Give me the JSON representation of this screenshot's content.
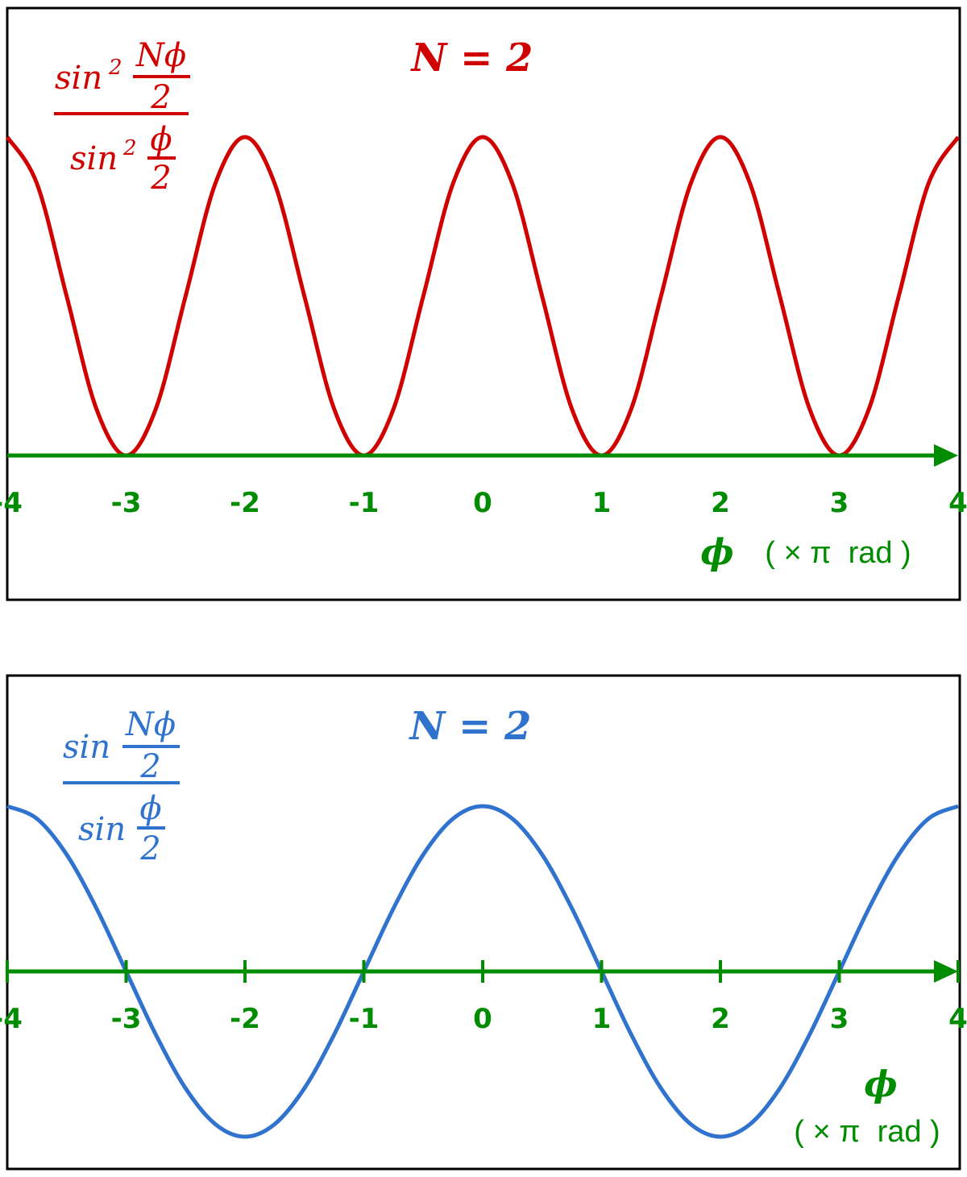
{
  "colors": {
    "top_curve": "#d00000",
    "bottom_curve": "#2f73cf",
    "axis": "#008c00",
    "frame": "#000000"
  },
  "chart_data": [
    {
      "type": "line",
      "title": "N = 2",
      "formula": {
        "num_fn": "sin",
        "num_pow": "2",
        "num_arg_top": "Nϕ",
        "num_arg_bot": "2",
        "den_fn": "sin",
        "den_pow": "2",
        "den_arg_top": "ϕ",
        "den_arg_bot": "2"
      },
      "xlabel": {
        "symbol": "ϕ",
        "unit": "( × π  rad )"
      },
      "xlim": [
        -4,
        4
      ],
      "ylim": [
        0,
        4
      ],
      "xticks": [
        "-4",
        "-3",
        "-2",
        "-1",
        "0",
        "1",
        "2",
        "3",
        "4"
      ],
      "tick_marks": false,
      "x": [
        -4,
        -3.75,
        -3.5,
        -3.25,
        -3,
        -2.75,
        -2.5,
        -2.25,
        -2,
        -1.75,
        -1.5,
        -1.25,
        -1,
        -0.75,
        -0.5,
        -0.25,
        0,
        0.25,
        0.5,
        0.75,
        1,
        1.25,
        1.5,
        1.75,
        2,
        2.25,
        2.5,
        2.75,
        3,
        3.25,
        3.5,
        3.75,
        4
      ],
      "y": [
        4,
        3.414,
        2,
        0.586,
        0,
        0.586,
        2,
        3.414,
        4,
        3.414,
        2,
        0.586,
        0,
        0.586,
        2,
        3.414,
        4,
        3.414,
        2,
        0.586,
        0,
        0.586,
        2,
        3.414,
        4,
        3.414,
        2,
        0.586,
        0,
        0.586,
        2,
        3.414,
        4
      ]
    },
    {
      "type": "line",
      "title": "N = 2",
      "formula": {
        "num_fn": "sin",
        "num_arg_top": "Nϕ",
        "num_arg_bot": "2",
        "den_fn": "sin",
        "den_arg_top": "ϕ",
        "den_arg_bot": "2"
      },
      "xlabel": {
        "symbol": "ϕ",
        "unit": "( × π  rad )"
      },
      "xlim": [
        -4,
        4
      ],
      "ylim": [
        -2,
        2
      ],
      "xticks": [
        "-4",
        "-3",
        "-2",
        "-1",
        "0",
        "1",
        "2",
        "3",
        "4"
      ],
      "tick_marks": true,
      "x": [
        -4,
        -3.75,
        -3.5,
        -3.25,
        -3,
        -2.75,
        -2.5,
        -2.25,
        -2,
        -1.75,
        -1.5,
        -1.25,
        -1,
        -0.75,
        -0.5,
        -0.25,
        0,
        0.25,
        0.5,
        0.75,
        1,
        1.25,
        1.5,
        1.75,
        2,
        2.25,
        2.5,
        2.75,
        3,
        3.25,
        3.5,
        3.75,
        4
      ],
      "y": [
        2,
        1.848,
        1.414,
        0.765,
        0,
        -0.765,
        -1.414,
        -1.848,
        -2,
        -1.848,
        -1.414,
        -0.765,
        0,
        0.765,
        1.414,
        1.848,
        2,
        1.848,
        1.414,
        0.765,
        0,
        -0.765,
        -1.414,
        -1.848,
        -2,
        -1.848,
        -1.414,
        -0.765,
        0,
        0.765,
        1.414,
        1.848,
        2
      ]
    }
  ]
}
